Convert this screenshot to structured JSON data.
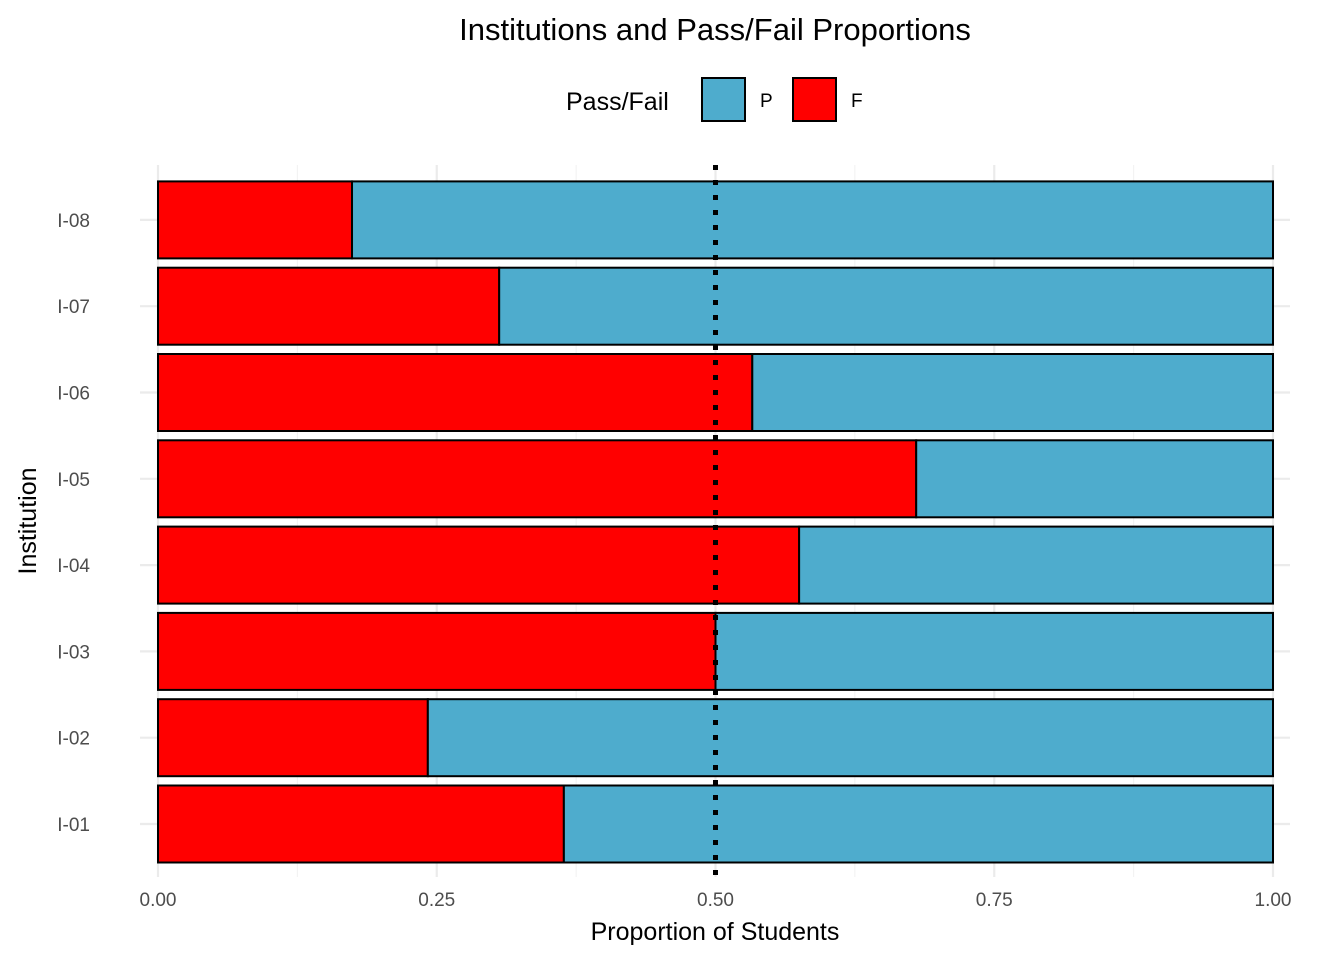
{
  "chart_data": {
    "type": "bar",
    "orientation": "horizontal",
    "stacked": true,
    "title": "Institutions and Pass/Fail Proportions",
    "xlabel": "Proportion of Students",
    "ylabel": "Institution",
    "xlim": [
      0,
      1
    ],
    "x_ticks": [
      "0.00",
      "0.25",
      "0.50",
      "0.75",
      "1.00"
    ],
    "x_tick_values": [
      0,
      0.25,
      0.5,
      0.75,
      1.0
    ],
    "categories": [
      "I-01",
      "I-02",
      "I-03",
      "I-04",
      "I-05",
      "I-06",
      "I-07",
      "I-08"
    ],
    "series": [
      {
        "name": "F",
        "color": "#FF0000",
        "values": [
          0.364,
          0.242,
          0.5,
          0.575,
          0.68,
          0.533,
          0.306,
          0.174
        ]
      },
      {
        "name": "P",
        "color": "#4EACCD",
        "values": [
          0.636,
          0.758,
          0.5,
          0.425,
          0.32,
          0.467,
          0.694,
          0.826
        ]
      }
    ],
    "reference_line": {
      "x": 0.5,
      "style": "dotted",
      "color": "#000000"
    },
    "legend": {
      "title": "Pass/Fail",
      "position": "top",
      "items": [
        {
          "label": "P",
          "color": "#4EACCD"
        },
        {
          "label": "F",
          "color": "#FF0000"
        }
      ]
    },
    "grid": true
  }
}
